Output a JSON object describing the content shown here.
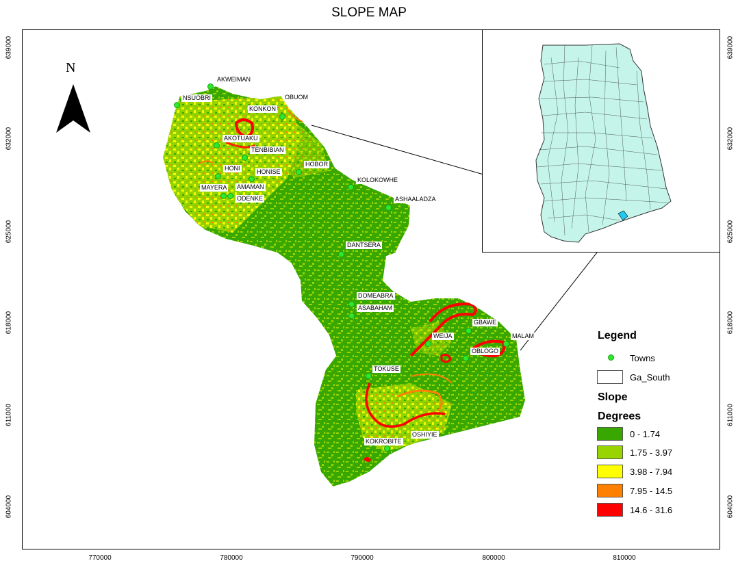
{
  "title": "SLOPE MAP",
  "north_label": "N",
  "y_ticks": [
    "639000",
    "632000",
    "625000",
    "618000",
    "611000",
    "604000"
  ],
  "x_ticks": [
    "770000",
    "780000",
    "790000",
    "800000",
    "810000"
  ],
  "towns": [
    "AKWEIMAN",
    "NSUOBRI",
    "OBUOM",
    "KONKON",
    "AKOTUAKU",
    "TENBIBIAN",
    "HOBOR",
    "HONI",
    "HONISE",
    "KOLOKOWHE",
    "MAYERA",
    "AMAMAN",
    "ODENKE",
    "ASHAALADZA",
    "DANTSERA",
    "DOMEABRA",
    "ASABAHAM",
    "GBAWE",
    "WEIJA",
    "MALAM",
    "OBLOGO",
    "TOKUSE",
    "OSHIYIE",
    "KOKROBITE"
  ],
  "legend": {
    "title": "Legend",
    "towns_label": "Towns",
    "boundary_label": "Ga_South",
    "slope_label": "Slope",
    "degrees_label": "Degrees",
    "classes": [
      {
        "label": "0 - 1.74",
        "color": "#38a800"
      },
      {
        "label": "1.75 - 3.97",
        "color": "#98d400"
      },
      {
        "label": "3.98 - 7.94",
        "color": "#ffff00"
      },
      {
        "label": "7.95 - 14.5",
        "color": "#ff8000"
      },
      {
        "label": "14.6 - 31.6",
        "color": "#ff0000"
      }
    ]
  },
  "colors": {
    "inset_fill": "#c5f5ea",
    "highlight": "#22c8f0",
    "town": "#2ee82e"
  }
}
